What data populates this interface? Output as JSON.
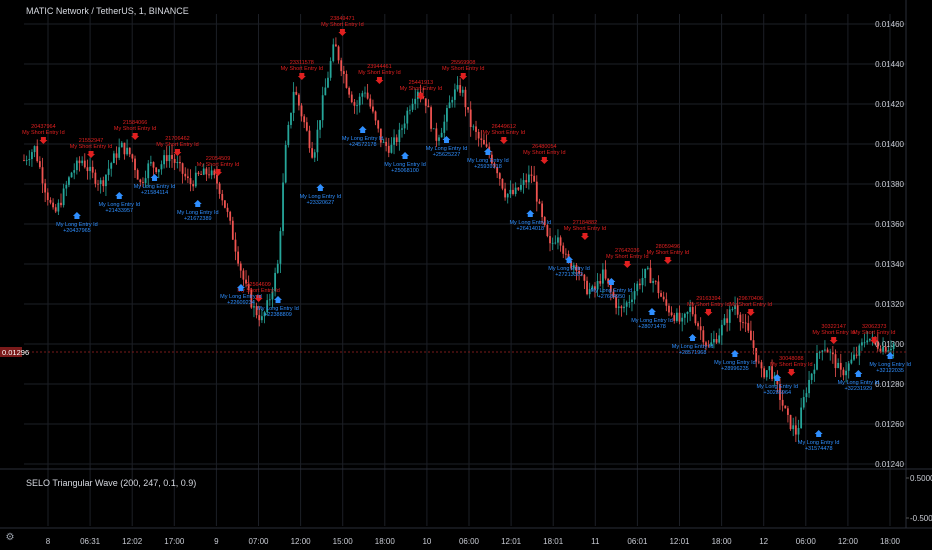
{
  "header": {
    "title": "MATIC Network / TetherUS, 1, BINANCE",
    "indicator": "SELO Triangular Wave (200, 247, 0.1, 0.9)"
  },
  "colors": {
    "background": "#000000",
    "grid": "#1c1f26",
    "up": "#26a69a",
    "down": "#ef5350",
    "short": "#e02020",
    "long": "#2f8fff",
    "current": "#7a1a1a"
  },
  "chart_data": {
    "type": "candlestick",
    "y_ticks": [
      "0.01460",
      "0.01440",
      "0.01420",
      "0.01400",
      "0.01380",
      "0.01360",
      "0.01340",
      "0.01320",
      "0.01300",
      "0.01280",
      "0.01260",
      "0.01240"
    ],
    "ylim": [
      0.01238,
      0.01465
    ],
    "current_price": "0.01296",
    "x_ticks": [
      "8",
      "06:31",
      "12:02",
      "17:00",
      "9",
      "07:00",
      "12:00",
      "15:00",
      "18:00",
      "10",
      "06:00",
      "12:01",
      "18:01",
      "11",
      "06:01",
      "12:01",
      "18:00",
      "12",
      "06:00",
      "12:00",
      "18:00"
    ],
    "indicator_ticks": [
      "0.50000",
      "-0.50000"
    ],
    "price_path": [
      [
        0.0,
        0.01392
      ],
      [
        1.2,
        0.01398
      ],
      [
        2.4,
        0.01378
      ],
      [
        3.4,
        0.01364
      ],
      [
        4.2,
        0.01372
      ],
      [
        5.4,
        0.01386
      ],
      [
        6.6,
        0.01392
      ],
      [
        7.6,
        0.01385
      ],
      [
        8.8,
        0.0138
      ],
      [
        9.8,
        0.0139
      ],
      [
        11.0,
        0.01399
      ],
      [
        12.2,
        0.01394
      ],
      [
        13.2,
        0.0138
      ],
      [
        14.2,
        0.0139
      ],
      [
        15.2,
        0.01388
      ],
      [
        16.4,
        0.01395
      ],
      [
        17.6,
        0.01388
      ],
      [
        18.8,
        0.0138
      ],
      [
        19.8,
        0.01384
      ],
      [
        21.0,
        0.01386
      ],
      [
        22.0,
        0.0138
      ],
      [
        23.0,
        0.01366
      ],
      [
        24.0,
        0.01348
      ],
      [
        25.0,
        0.0133
      ],
      [
        26.0,
        0.01318
      ],
      [
        27.0,
        0.01312
      ],
      [
        27.8,
        0.01322
      ],
      [
        28.8,
        0.0134
      ],
      [
        29.6,
        0.01395
      ],
      [
        30.6,
        0.01428
      ],
      [
        31.8,
        0.0141
      ],
      [
        32.8,
        0.01394
      ],
      [
        33.8,
        0.0142
      ],
      [
        35.2,
        0.0145
      ],
      [
        36.6,
        0.0143
      ],
      [
        37.6,
        0.01418
      ],
      [
        38.6,
        0.01428
      ],
      [
        39.6,
        0.01414
      ],
      [
        40.6,
        0.014
      ],
      [
        41.6,
        0.01398
      ],
      [
        42.6,
        0.01405
      ],
      [
        43.6,
        0.01418
      ],
      [
        44.6,
        0.01428
      ],
      [
        45.6,
        0.01421
      ],
      [
        46.6,
        0.01402
      ],
      [
        47.6,
        0.0141
      ],
      [
        48.6,
        0.01425
      ],
      [
        49.6,
        0.01428
      ],
      [
        50.6,
        0.0141
      ],
      [
        51.6,
        0.01402
      ],
      [
        52.6,
        0.01396
      ],
      [
        53.6,
        0.01388
      ],
      [
        54.6,
        0.01375
      ],
      [
        55.6,
        0.01375
      ],
      [
        56.6,
        0.0138
      ],
      [
        57.6,
        0.01385
      ],
      [
        58.6,
        0.01364
      ],
      [
        59.6,
        0.01348
      ],
      [
        60.6,
        0.01356
      ],
      [
        61.6,
        0.0134
      ],
      [
        62.6,
        0.0134
      ],
      [
        63.6,
        0.01328
      ],
      [
        64.6,
        0.01326
      ],
      [
        65.6,
        0.01335
      ],
      [
        66.6,
        0.01325
      ],
      [
        67.6,
        0.01316
      ],
      [
        68.6,
        0.01322
      ],
      [
        69.6,
        0.0133
      ],
      [
        70.6,
        0.01336
      ],
      [
        71.6,
        0.0133
      ],
      [
        72.6,
        0.0132
      ],
      [
        73.6,
        0.01315
      ],
      [
        74.6,
        0.0131
      ],
      [
        75.6,
        0.01318
      ],
      [
        76.6,
        0.01308
      ],
      [
        77.6,
        0.01298
      ],
      [
        78.6,
        0.01304
      ],
      [
        79.6,
        0.01312
      ],
      [
        80.6,
        0.0132
      ],
      [
        81.6,
        0.0131
      ],
      [
        82.6,
        0.013
      ],
      [
        83.6,
        0.01285
      ],
      [
        84.6,
        0.01288
      ],
      [
        85.6,
        0.01275
      ],
      [
        86.6,
        0.01262
      ],
      [
        87.6,
        0.01255
      ],
      [
        88.6,
        0.01276
      ],
      [
        89.6,
        0.0129
      ],
      [
        90.6,
        0.013
      ],
      [
        91.6,
        0.01294
      ],
      [
        92.6,
        0.01285
      ],
      [
        93.6,
        0.0129
      ],
      [
        94.6,
        0.01296
      ],
      [
        95.6,
        0.01304
      ],
      [
        96.6,
        0.013
      ],
      [
        97.6,
        0.01298
      ],
      [
        98.6,
        0.013
      ]
    ],
    "short_entries": [
      {
        "t": 2.2,
        "y": 0.014,
        "id": "20437964",
        "text": "My Short Entry Id"
      },
      {
        "t": 7.6,
        "y": 0.01393,
        "id": "21552947",
        "text": "My Short Entry Id"
      },
      {
        "t": 12.6,
        "y": 0.01402,
        "id": "21584066",
        "text": "My Short Entry Id"
      },
      {
        "t": 17.4,
        "y": 0.01394,
        "id": "21706462",
        "text": "My Short Entry Id"
      },
      {
        "t": 22.0,
        "y": 0.01384,
        "id": "22054509",
        "text": "My Short Entry Id"
      },
      {
        "t": 26.6,
        "y": 0.01321,
        "id": "22564609",
        "text": "My Short Entry Id"
      },
      {
        "t": 31.5,
        "y": 0.01432,
        "id": "23311578",
        "text": "My Short Entry Id"
      },
      {
        "t": 36.1,
        "y": 0.01454,
        "id": "23849471",
        "text": "My Short Entry Id"
      },
      {
        "t": 40.3,
        "y": 0.0143,
        "id": "23944461",
        "text": "My Short Entry Id"
      },
      {
        "t": 45.0,
        "y": 0.01422,
        "id": "25441913",
        "text": "My Short Entry Id"
      },
      {
        "t": 49.8,
        "y": 0.01432,
        "id": "25569908",
        "text": "My Short Entry Id"
      },
      {
        "t": 54.4,
        "y": 0.014,
        "id": "26449612",
        "text": "My Short Entry Id"
      },
      {
        "t": 59.0,
        "y": 0.0139,
        "id": "26480054",
        "text": "My Short Entry Id"
      },
      {
        "t": 63.6,
        "y": 0.01352,
        "id": "27184882",
        "text": "My Short Entry Id"
      },
      {
        "t": 68.4,
        "y": 0.01338,
        "id": "27642036",
        "text": "My Short Entry Id"
      },
      {
        "t": 73.0,
        "y": 0.0134,
        "id": "28059496",
        "text": "My Short Entry Id"
      },
      {
        "t": 77.6,
        "y": 0.01314,
        "id": "29163394",
        "text": "My Short Entry Id"
      },
      {
        "t": 82.4,
        "y": 0.01314,
        "id": "29670406",
        "text": "My Short Entry Id"
      },
      {
        "t": 87.0,
        "y": 0.01284,
        "id": "30048088",
        "text": "My Short Entry Id"
      },
      {
        "t": 91.8,
        "y": 0.013,
        "id": "30322147",
        "text": "My Short Entry Id"
      },
      {
        "t": 96.4,
        "y": 0.013,
        "id": "32062373",
        "text": "My Short Entry Id"
      }
    ],
    "long_entries": [
      {
        "t": 6.0,
        "y": 0.01366,
        "id": "+20437965",
        "text": "My Long Entry Id"
      },
      {
        "t": 10.8,
        "y": 0.01376,
        "id": "+21433957",
        "text": "My Long Entry Id"
      },
      {
        "t": 14.8,
        "y": 0.01385,
        "id": "+21584114",
        "text": "My Long Entry Id"
      },
      {
        "t": 19.7,
        "y": 0.01372,
        "id": "+21672389",
        "text": "My Long Entry Id"
      },
      {
        "t": 24.6,
        "y": 0.0133,
        "id": "+22609234",
        "text": "My Long Entry Id"
      },
      {
        "t": 28.8,
        "y": 0.01324,
        "id": "+22388809",
        "text": "My Long Entry Id"
      },
      {
        "t": 33.6,
        "y": 0.0138,
        "id": "+23320627",
        "text": "My Long Entry Id"
      },
      {
        "t": 38.4,
        "y": 0.01409,
        "id": "+24572178",
        "text": "My Long Entry Id"
      },
      {
        "t": 43.2,
        "y": 0.01396,
        "id": "+25068100",
        "text": "My Long Entry Id"
      },
      {
        "t": 47.9,
        "y": 0.01404,
        "id": "+25625227",
        "text": "My Long Entry Id"
      },
      {
        "t": 52.6,
        "y": 0.01398,
        "id": "+25939218",
        "text": "My Long Entry Id"
      },
      {
        "t": 57.4,
        "y": 0.01367,
        "id": "+26414018",
        "text": "My Long Entry Id"
      },
      {
        "t": 61.8,
        "y": 0.01344,
        "id": "+27213302",
        "text": "My Long Entry Id"
      },
      {
        "t": 66.6,
        "y": 0.01333,
        "id": "+27684950",
        "text": "My Long Entry Id"
      },
      {
        "t": 71.2,
        "y": 0.01318,
        "id": "+28071478",
        "text": "My Long Entry Id"
      },
      {
        "t": 75.8,
        "y": 0.01305,
        "id": "+28571968",
        "text": "My Long Entry Id"
      },
      {
        "t": 80.6,
        "y": 0.01297,
        "id": "+28996235",
        "text": "My Long Entry Id"
      },
      {
        "t": 85.4,
        "y": 0.01285,
        "id": "+30285964",
        "text": "My Long Entry Id"
      },
      {
        "t": 90.1,
        "y": 0.01257,
        "id": "+31574478",
        "text": "My Long Entry Id"
      },
      {
        "t": 94.6,
        "y": 0.01287,
        "id": "+32231929",
        "text": "My Long Entry Id"
      },
      {
        "t": 98.2,
        "y": 0.01296,
        "id": "+32122035",
        "text": "My Long Entry Id"
      }
    ]
  }
}
